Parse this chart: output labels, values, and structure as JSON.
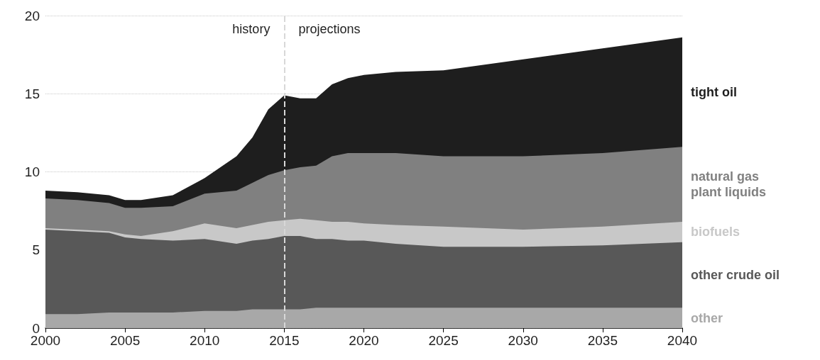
{
  "chart_data": {
    "type": "area",
    "stacked": true,
    "x": [
      2000,
      2002,
      2004,
      2005,
      2006,
      2008,
      2010,
      2012,
      2013,
      2014,
      2015,
      2016,
      2017,
      2018,
      2019,
      2020,
      2022,
      2025,
      2030,
      2035,
      2040
    ],
    "series": [
      {
        "name": "other",
        "color": "#a8a8a8",
        "values": [
          0.9,
          0.9,
          1.0,
          1.0,
          1.0,
          1.0,
          1.1,
          1.1,
          1.2,
          1.2,
          1.2,
          1.2,
          1.3,
          1.3,
          1.3,
          1.3,
          1.3,
          1.3,
          1.3,
          1.3,
          1.3
        ]
      },
      {
        "name": "other crude oil",
        "color": "#585858",
        "values": [
          5.4,
          5.3,
          5.1,
          4.8,
          4.7,
          4.6,
          4.6,
          4.3,
          4.4,
          4.5,
          4.7,
          4.7,
          4.4,
          4.4,
          4.3,
          4.3,
          4.1,
          3.9,
          3.9,
          4.0,
          4.2
        ]
      },
      {
        "name": "biofuels",
        "color": "#c8c8c8",
        "values": [
          0.1,
          0.1,
          0.1,
          0.2,
          0.2,
          0.6,
          1.0,
          1.0,
          1.0,
          1.1,
          1.0,
          1.1,
          1.2,
          1.1,
          1.2,
          1.1,
          1.2,
          1.3,
          1.1,
          1.2,
          1.3
        ]
      },
      {
        "name": "natural gas\nplant liquids",
        "color": "#808080",
        "values": [
          1.9,
          1.9,
          1.8,
          1.7,
          1.8,
          1.6,
          1.9,
          2.4,
          2.7,
          3.0,
          3.2,
          3.3,
          3.5,
          4.2,
          4.4,
          4.5,
          4.6,
          4.5,
          4.7,
          4.7,
          4.8
        ]
      },
      {
        "name": "tight oil",
        "color": "#1e1e1e",
        "values": [
          0.5,
          0.5,
          0.5,
          0.5,
          0.5,
          0.7,
          1.0,
          2.2,
          2.9,
          4.2,
          4.8,
          4.4,
          4.3,
          4.6,
          4.8,
          5.0,
          5.2,
          5.5,
          6.2,
          6.7,
          7.0
        ]
      }
    ],
    "xlim": [
      2000,
      2040
    ],
    "xticks": [
      2000,
      2005,
      2010,
      2015,
      2020,
      2025,
      2030,
      2035,
      2040
    ],
    "ylim": [
      0,
      20
    ],
    "yticks": [
      0,
      5,
      10,
      15,
      20
    ],
    "grid": "y",
    "ref_lines": [
      {
        "axis": "x",
        "value": 2015,
        "color": "#d8d8d8",
        "line_style": "dashed"
      }
    ],
    "annotations": [
      "history",
      "projections"
    ]
  }
}
